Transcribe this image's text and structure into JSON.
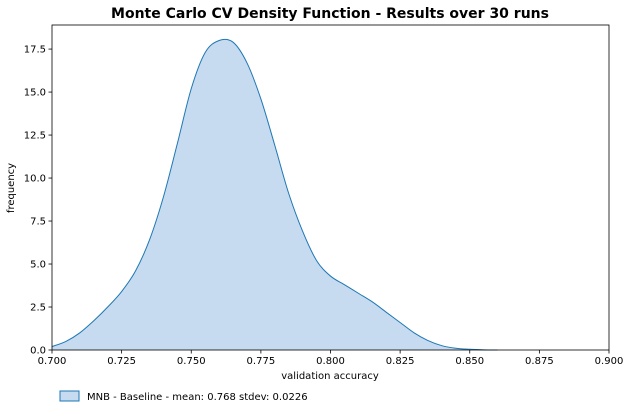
{
  "chart_data": {
    "type": "area",
    "title": "Monte Carlo CV Density Function - Results over 30 runs",
    "xlabel": "validation accuracy",
    "ylabel": "frequency",
    "xlim": [
      0.7,
      0.9
    ],
    "ylim": [
      0,
      18.9
    ],
    "x_ticks": [
      "0.700",
      "0.725",
      "0.750",
      "0.775",
      "0.800",
      "0.825",
      "0.850",
      "0.875",
      "0.900"
    ],
    "y_ticks": [
      "0.0",
      "2.5",
      "5.0",
      "7.5",
      "10.0",
      "12.5",
      "15.0",
      "17.5"
    ],
    "legend_position": "below-left",
    "grid": false,
    "series": [
      {
        "name": "MNB - Baseline - mean: 0.768 stdev: 0.0226",
        "line_color": "#1f77b4",
        "fill_color": "#c6dbef",
        "x": [
          0.7,
          0.705,
          0.71,
          0.715,
          0.72,
          0.725,
          0.73,
          0.735,
          0.74,
          0.745,
          0.75,
          0.755,
          0.76,
          0.765,
          0.77,
          0.775,
          0.78,
          0.785,
          0.79,
          0.795,
          0.8,
          0.805,
          0.81,
          0.815,
          0.82,
          0.825,
          0.83,
          0.835,
          0.84,
          0.845,
          0.85,
          0.855,
          0.86
        ],
        "y": [
          0.2,
          0.5,
          1.0,
          1.7,
          2.5,
          3.4,
          4.6,
          6.4,
          8.9,
          12.0,
          15.2,
          17.3,
          18.0,
          17.9,
          16.7,
          14.6,
          11.9,
          9.1,
          6.9,
          5.2,
          4.3,
          3.8,
          3.3,
          2.8,
          2.2,
          1.6,
          1.0,
          0.55,
          0.25,
          0.1,
          0.04,
          0.01,
          0.0
        ]
      }
    ]
  }
}
